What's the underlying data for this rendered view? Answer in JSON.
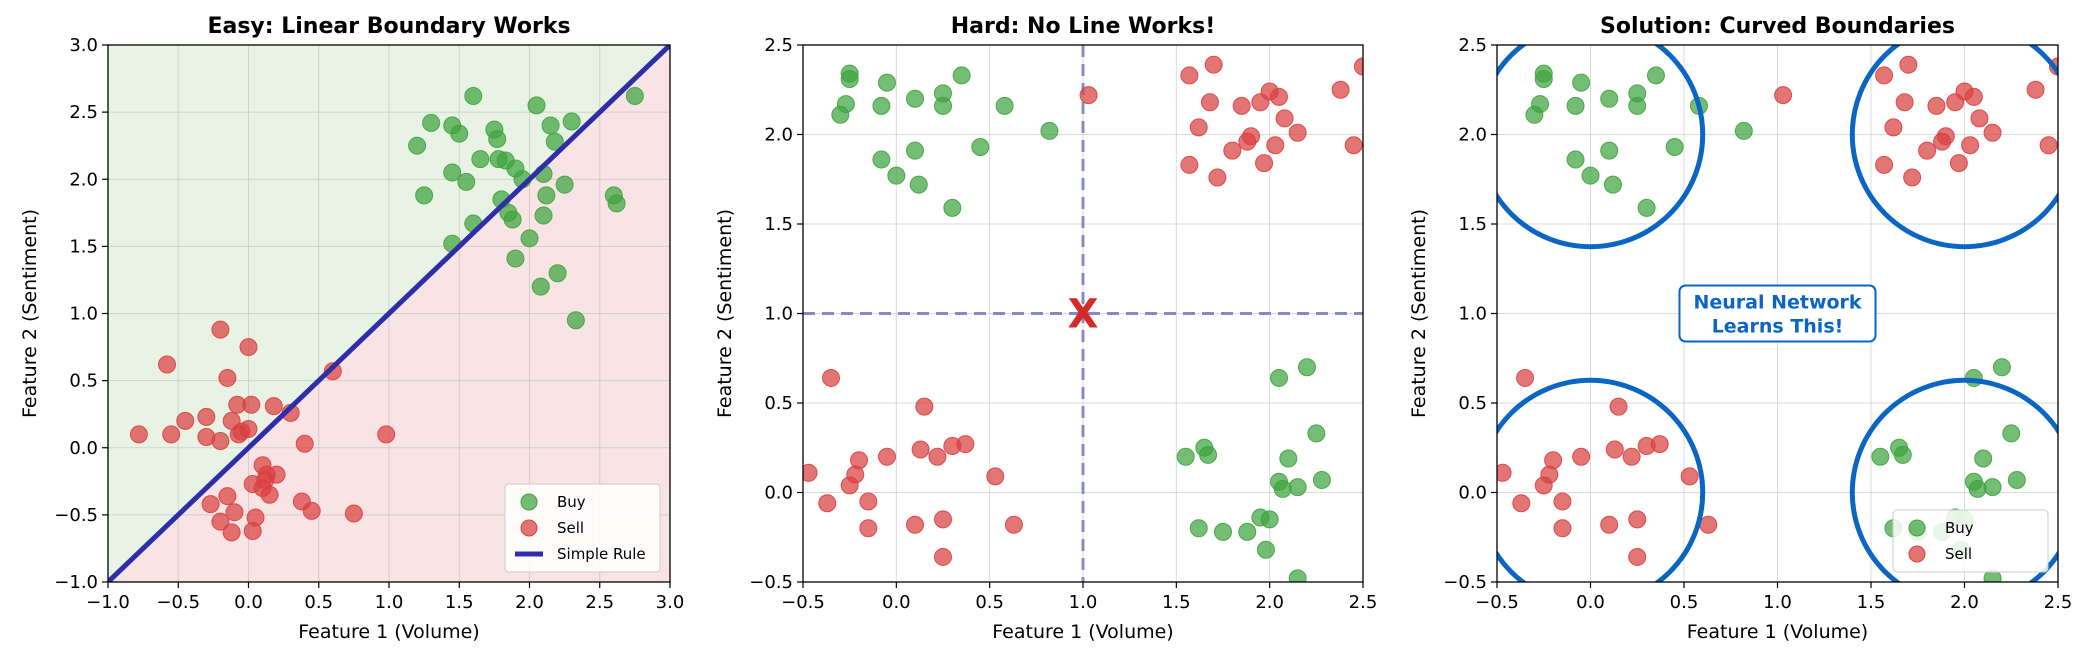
{
  "chart_data": [
    {
      "type": "scatter",
      "title": "Easy: Linear Boundary Works",
      "xlabel": "Feature 1 (Volume)",
      "ylabel": "Feature 2 (Sentiment)",
      "xlim": [
        -1.0,
        3.0
      ],
      "ylim": [
        -1.0,
        3.0
      ],
      "xticks": [
        "−1.0",
        "−0.5",
        "0.0",
        "0.5",
        "1.0",
        "1.5",
        "2.0",
        "2.5",
        "3.0"
      ],
      "yticks": [
        "−1.0",
        "−0.5",
        "0.0",
        "0.5",
        "1.0",
        "1.5",
        "2.0",
        "2.5",
        "3.0"
      ],
      "grid": true,
      "regions": {
        "above": "#e8f3e6",
        "below": "#f8e4e4"
      },
      "legend": {
        "position": "bottom-right",
        "labels": [
          "Buy",
          "Sell",
          "Simple Rule"
        ]
      },
      "series": [
        {
          "name": "Buy",
          "color": "#3ea33e",
          "points": [
            [
              1.6,
              2.62
            ],
            [
              1.3,
              2.42
            ],
            [
              1.45,
              2.4
            ],
            [
              1.5,
              2.34
            ],
            [
              1.2,
              2.25
            ],
            [
              1.75,
              2.37
            ],
            [
              1.77,
              2.3
            ],
            [
              2.05,
              2.55
            ],
            [
              2.15,
              2.4
            ],
            [
              2.3,
              2.43
            ],
            [
              2.18,
              2.28
            ],
            [
              2.75,
              2.62
            ],
            [
              1.25,
              1.88
            ],
            [
              1.45,
              2.05
            ],
            [
              1.55,
              1.98
            ],
            [
              1.65,
              2.15
            ],
            [
              1.78,
              2.15
            ],
            [
              1.83,
              2.14
            ],
            [
              1.9,
              2.08
            ],
            [
              1.95,
              2.0
            ],
            [
              2.1,
              2.04
            ],
            [
              2.25,
              1.96
            ],
            [
              1.8,
              1.85
            ],
            [
              1.85,
              1.75
            ],
            [
              1.88,
              1.7
            ],
            [
              2.1,
              1.73
            ],
            [
              2.12,
              1.88
            ],
            [
              2.0,
              1.56
            ],
            [
              1.6,
              1.67
            ],
            [
              1.45,
              1.52
            ],
            [
              1.9,
              1.41
            ],
            [
              2.6,
              1.88
            ],
            [
              2.62,
              1.82
            ],
            [
              2.2,
              1.3
            ],
            [
              2.08,
              1.2
            ],
            [
              2.33,
              0.95
            ]
          ]
        },
        {
          "name": "Sell",
          "color": "#d94040",
          "points": [
            [
              -0.2,
              0.88
            ],
            [
              0.0,
              0.75
            ],
            [
              -0.58,
              0.62
            ],
            [
              -0.15,
              0.52
            ],
            [
              0.6,
              0.57
            ],
            [
              -0.78,
              0.1
            ],
            [
              -0.55,
              0.1
            ],
            [
              -0.45,
              0.2
            ],
            [
              -0.3,
              0.23
            ],
            [
              -0.3,
              0.08
            ],
            [
              -0.2,
              0.05
            ],
            [
              -0.12,
              0.2
            ],
            [
              -0.08,
              0.32
            ],
            [
              0.02,
              0.32
            ],
            [
              -0.05,
              0.12
            ],
            [
              -0.07,
              0.1
            ],
            [
              0.0,
              0.14
            ],
            [
              0.18,
              0.31
            ],
            [
              0.3,
              0.26
            ],
            [
              0.4,
              0.03
            ],
            [
              0.98,
              0.1
            ],
            [
              0.2,
              -0.2
            ],
            [
              0.1,
              -0.13
            ],
            [
              0.13,
              -0.2
            ],
            [
              0.12,
              -0.24
            ],
            [
              0.1,
              -0.3
            ],
            [
              0.15,
              -0.35
            ],
            [
              0.03,
              -0.27
            ],
            [
              -0.27,
              -0.42
            ],
            [
              -0.15,
              -0.36
            ],
            [
              -0.1,
              -0.48
            ],
            [
              -0.2,
              -0.55
            ],
            [
              -0.12,
              -0.63
            ],
            [
              0.05,
              -0.52
            ],
            [
              0.03,
              -0.62
            ],
            [
              0.38,
              -0.4
            ],
            [
              0.45,
              -0.47
            ],
            [
              0.75,
              -0.49
            ]
          ]
        }
      ],
      "line": {
        "name": "Simple Rule",
        "color": "#2e2ea8",
        "x": [
          -1.0,
          3.0
        ],
        "y": [
          -1.0,
          3.0
        ]
      }
    },
    {
      "type": "scatter",
      "title": "Hard: No Line Works!",
      "xlabel": "Feature 1 (Volume)",
      "ylabel": "Feature 2 (Sentiment)",
      "xlim": [
        -0.5,
        2.5
      ],
      "ylim": [
        -0.5,
        2.5
      ],
      "xticks": [
        "−0.5",
        "0.0",
        "0.5",
        "1.0",
        "1.5",
        "2.0",
        "2.5"
      ],
      "yticks": [
        "−0.5",
        "0.0",
        "0.5",
        "1.0",
        "1.5",
        "2.0",
        "2.5"
      ],
      "grid": true,
      "guides": {
        "x": 1.0,
        "y": 1.0,
        "color": "#8888cc"
      },
      "marker": {
        "text": "X",
        "x": 1.0,
        "y": 1.0,
        "color": "#d42a2a"
      },
      "series": [
        {
          "name": "Buy",
          "color": "#3ea33e",
          "points": [
            [
              -0.25,
              2.34
            ],
            [
              -0.25,
              2.31
            ],
            [
              -0.27,
              2.17
            ],
            [
              -0.3,
              2.11
            ],
            [
              -0.05,
              2.29
            ],
            [
              -0.08,
              2.16
            ],
            [
              0.1,
              2.2
            ],
            [
              0.25,
              2.23
            ],
            [
              0.25,
              2.16
            ],
            [
              0.35,
              2.33
            ],
            [
              0.58,
              2.16
            ],
            [
              0.82,
              2.02
            ],
            [
              -0.08,
              1.86
            ],
            [
              0.1,
              1.91
            ],
            [
              0.3,
              1.59
            ],
            [
              0.12,
              1.72
            ],
            [
              0.0,
              1.77
            ],
            [
              0.45,
              1.93
            ],
            [
              1.55,
              0.2
            ],
            [
              1.65,
              0.25
            ],
            [
              1.67,
              0.21
            ],
            [
              2.05,
              0.64
            ],
            [
              2.2,
              0.7
            ],
            [
              2.25,
              0.33
            ],
            [
              2.1,
              0.19
            ],
            [
              2.05,
              0.06
            ],
            [
              2.07,
              0.02
            ],
            [
              2.15,
              0.03
            ],
            [
              2.28,
              0.07
            ],
            [
              1.62,
              -0.2
            ],
            [
              1.75,
              -0.22
            ],
            [
              1.88,
              -0.22
            ],
            [
              1.95,
              -0.14
            ],
            [
              2.0,
              -0.15
            ],
            [
              1.98,
              -0.32
            ],
            [
              2.15,
              -0.48
            ]
          ]
        },
        {
          "name": "Sell",
          "color": "#d94040",
          "points": [
            [
              1.03,
              2.22
            ],
            [
              1.57,
              2.33
            ],
            [
              1.7,
              2.39
            ],
            [
              1.68,
              2.18
            ],
            [
              1.62,
              2.04
            ],
            [
              1.57,
              1.83
            ],
            [
              1.72,
              1.76
            ],
            [
              1.85,
              2.16
            ],
            [
              1.95,
              2.18
            ],
            [
              2.0,
              2.24
            ],
            [
              2.05,
              2.21
            ],
            [
              2.08,
              2.09
            ],
            [
              2.15,
              2.01
            ],
            [
              2.03,
              1.94
            ],
            [
              1.8,
              1.91
            ],
            [
              1.88,
              1.96
            ],
            [
              1.9,
              1.99
            ],
            [
              1.97,
              1.84
            ],
            [
              2.38,
              2.25
            ],
            [
              2.45,
              1.94
            ],
            [
              2.5,
              2.38
            ],
            [
              -0.35,
              0.64
            ],
            [
              -0.47,
              0.11
            ],
            [
              -0.37,
              -0.06
            ],
            [
              -0.25,
              0.04
            ],
            [
              -0.22,
              0.1
            ],
            [
              -0.2,
              0.18
            ],
            [
              -0.05,
              0.2
            ],
            [
              -0.15,
              -0.05
            ],
            [
              -0.15,
              -0.2
            ],
            [
              0.15,
              0.48
            ],
            [
              0.13,
              0.24
            ],
            [
              0.22,
              0.2
            ],
            [
              0.3,
              0.26
            ],
            [
              0.37,
              0.27
            ],
            [
              0.25,
              -0.15
            ],
            [
              0.1,
              -0.18
            ],
            [
              0.25,
              -0.36
            ],
            [
              0.53,
              0.09
            ],
            [
              0.63,
              -0.18
            ]
          ]
        }
      ]
    },
    {
      "type": "scatter",
      "title": "Solution: Curved Boundaries",
      "xlabel": "Feature 1 (Volume)",
      "ylabel": "Feature 2 (Sentiment)",
      "xlim": [
        -0.5,
        2.5
      ],
      "ylim": [
        -0.5,
        2.5
      ],
      "xticks": [
        "−0.5",
        "0.0",
        "0.5",
        "1.0",
        "1.5",
        "2.0",
        "2.5"
      ],
      "yticks": [
        "−0.5",
        "0.0",
        "0.5",
        "1.0",
        "1.5",
        "2.0",
        "2.5"
      ],
      "grid": true,
      "legend": {
        "position": "bottom-right",
        "labels": [
          "Buy",
          "Sell"
        ]
      },
      "circles": {
        "color": "#0a66c2",
        "radius": 0.6,
        "centers": [
          [
            0,
            2
          ],
          [
            2,
            2
          ],
          [
            0,
            0
          ],
          [
            2,
            0
          ]
        ]
      },
      "annotation": {
        "lines": [
          "Neural Network",
          "Learns This!"
        ],
        "x": 1.0,
        "y": 1.0,
        "color": "#0a66c2"
      },
      "series_ref": 1
    }
  ]
}
